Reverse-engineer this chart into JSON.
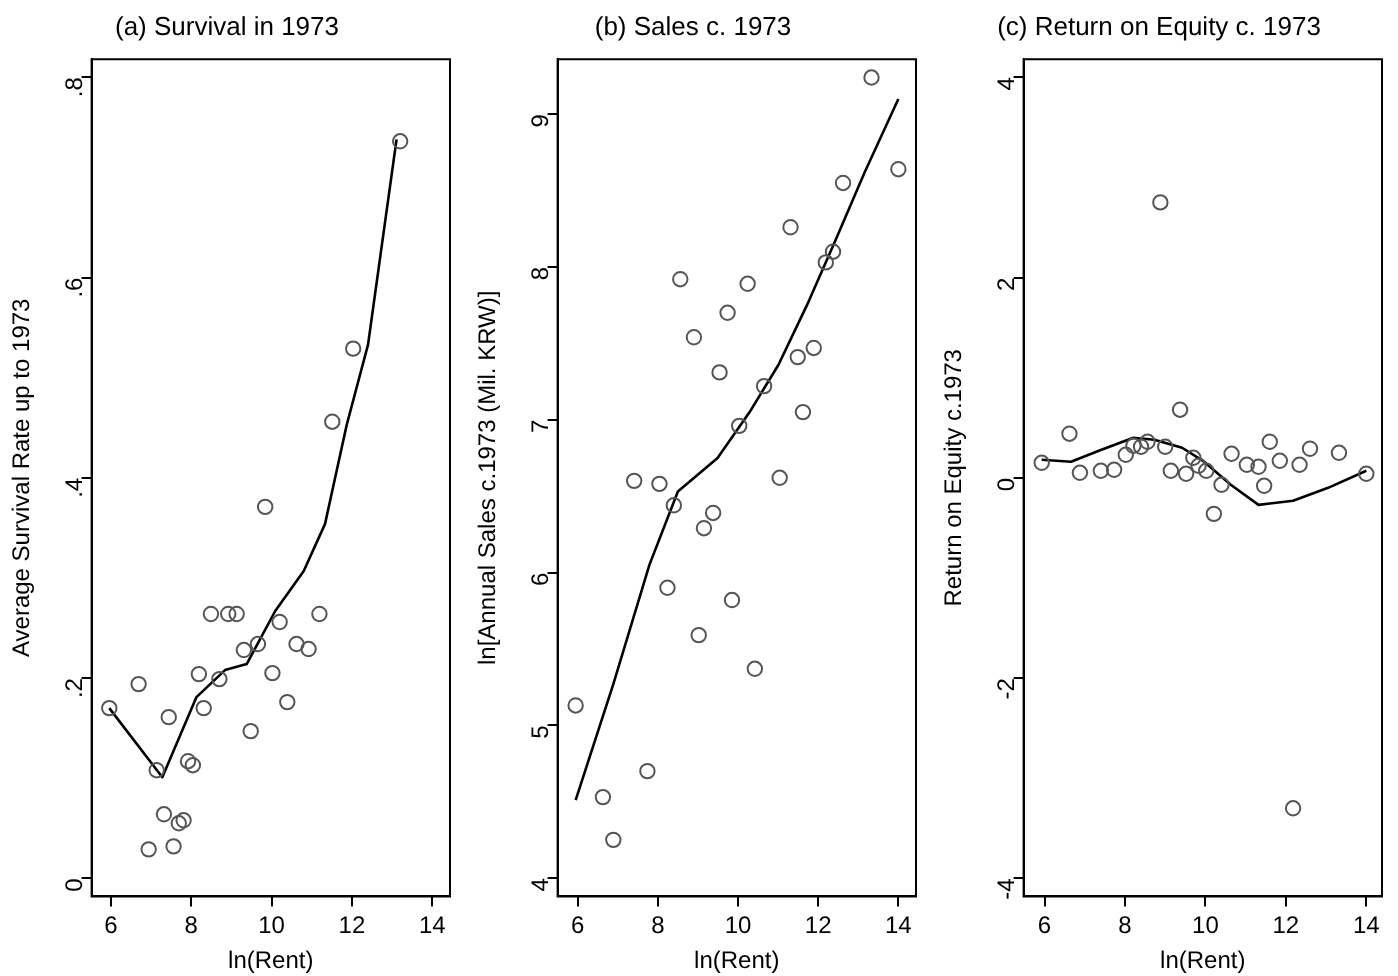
{
  "chart_data": [
    {
      "type": "scatter",
      "title": "(a) Survival in 1973",
      "xlabel": "ln(Rent)",
      "ylabel": "Average Survival Rate up to 1973",
      "xlim": [
        5.52,
        14.44
      ],
      "xticks": [
        6,
        8,
        10,
        12,
        14
      ],
      "ylim": [
        -0.018,
        0.818
      ],
      "yticks": [
        0,
        {
          "value": 0.2,
          "label": ".2"
        },
        {
          "value": 0.4,
          "label": ".4"
        },
        {
          "value": 0.6,
          "label": ".6"
        },
        {
          "value": 0.8,
          "label": ".8"
        }
      ],
      "grid": false,
      "legend": false,
      "marker": "circle",
      "series": [
        {
          "type": "scatter",
          "color": "#555555",
          "x": [
            5.96,
            6.69,
            6.94,
            7.14,
            7.32,
            7.44,
            7.56,
            7.69,
            7.81,
            7.92,
            8.04,
            8.19,
            8.31,
            8.49,
            8.7,
            8.92,
            9.13,
            9.31,
            9.48,
            9.66,
            9.84,
            10.02,
            10.2,
            10.39,
            10.62,
            10.92,
            11.19,
            11.51,
            12.03,
            13.2
          ],
          "values": [
            0.17,
            0.194,
            0.029,
            0.108,
            0.064,
            0.161,
            0.032,
            0.055,
            0.058,
            0.117,
            0.113,
            0.204,
            0.17,
            0.264,
            0.199,
            0.264,
            0.264,
            0.228,
            0.147,
            0.234,
            0.371,
            0.205,
            0.256,
            0.176,
            0.234,
            0.229,
            0.264,
            0.456,
            0.529,
            0.736
          ]
        },
        {
          "type": "line",
          "marker": "none",
          "color": "#000000",
          "x": [
            5.96,
            7.28,
            8.13,
            8.84,
            9.38,
            10.09,
            10.8,
            11.33,
            11.87,
            12.4,
            13.11
          ],
          "values": [
            0.17,
            0.101,
            0.181,
            0.208,
            0.214,
            0.267,
            0.307,
            0.354,
            0.453,
            0.533,
            0.738
          ]
        }
      ]
    },
    {
      "type": "scatter",
      "title": "(b) Sales c. 1973",
      "xlabel": "ln(Rent)",
      "ylabel": "ln[Annual Sales c.1973 (Mil. KRW)]",
      "xlim": [
        5.5,
        14.44
      ],
      "xticks": [
        6,
        8,
        10,
        12,
        14
      ],
      "ylim": [
        3.88,
        9.36
      ],
      "yticks": [
        4,
        5,
        6,
        7,
        8,
        9
      ],
      "grid": false,
      "legend": false,
      "marker": "circle",
      "series": [
        {
          "type": "scatter",
          "color": "#555555",
          "x": [
            5.95,
            6.63,
            6.89,
            7.74,
            7.41,
            8.04,
            8.4,
            8.24,
            8.56,
            8.9,
            9.02,
            9.15,
            9.38,
            9.54,
            9.74,
            9.85,
            10.03,
            10.24,
            10.42,
            10.65,
            11.04,
            11.31,
            11.49,
            11.62,
            11.89,
            12.19,
            12.37,
            12.62,
            13.33,
            14.0
          ],
          "values": [
            5.13,
            4.53,
            4.25,
            4.7,
            6.6,
            6.58,
            6.44,
            5.9,
            7.92,
            7.54,
            5.59,
            6.29,
            6.39,
            7.31,
            7.7,
            5.82,
            6.96,
            7.89,
            5.37,
            7.22,
            6.62,
            8.26,
            7.41,
            7.05,
            7.47,
            8.03,
            8.1,
            8.55,
            9.24,
            8.64
          ]
        },
        {
          "type": "line",
          "marker": "none",
          "color": "#000000",
          "x": [
            5.95,
            6.89,
            7.79,
            8.5,
            9.49,
            10.29,
            11.01,
            11.72,
            12.44,
            13.16,
            14.0
          ],
          "values": [
            4.51,
            5.27,
            6.05,
            6.53,
            6.75,
            7.05,
            7.36,
            7.75,
            8.18,
            8.62,
            9.1
          ]
        }
      ]
    },
    {
      "type": "scatter",
      "title": "(c) Return on Equity c. 1973",
      "xlabel": "ln(Rent)",
      "ylabel": "Return on Equity c.1973",
      "xlim": [
        5.48,
        14.39
      ],
      "xticks": [
        6,
        8,
        10,
        12,
        14
      ],
      "ylim": [
        -4.18,
        4.18
      ],
      "yticks": [
        -4,
        -2,
        0,
        2,
        4
      ],
      "grid": false,
      "legend": false,
      "marker": "circle",
      "series": [
        {
          "type": "scatter",
          "color": "#555555",
          "x": [
            5.93,
            6.62,
            6.88,
            7.4,
            7.73,
            8.02,
            8.21,
            8.4,
            8.56,
            8.88,
            9.0,
            9.14,
            9.37,
            9.52,
            9.7,
            9.83,
            10.02,
            10.21,
            10.4,
            10.65,
            11.03,
            11.32,
            11.46,
            11.6,
            11.85,
            12.18,
            12.34,
            12.6,
            13.32,
            14.0
          ],
          "values": [
            0.15,
            0.44,
            0.05,
            0.07,
            0.08,
            0.23,
            0.32,
            0.31,
            0.36,
            2.75,
            0.31,
            0.07,
            0.68,
            0.04,
            0.2,
            0.12,
            0.07,
            -0.36,
            -0.07,
            0.24,
            0.13,
            0.11,
            -0.08,
            0.36,
            0.17,
            -3.3,
            0.13,
            0.29,
            0.25,
            0.04
          ]
        },
        {
          "type": "line",
          "marker": "none",
          "color": "#000000",
          "x": [
            5.93,
            6.66,
            7.35,
            8.21,
            8.73,
            9.42,
            9.94,
            10.63,
            11.32,
            12.18,
            13.05,
            14.0
          ],
          "values": [
            0.18,
            0.16,
            0.27,
            0.4,
            0.38,
            0.3,
            0.17,
            -0.07,
            -0.27,
            -0.23,
            -0.1,
            0.07
          ]
        }
      ]
    }
  ]
}
